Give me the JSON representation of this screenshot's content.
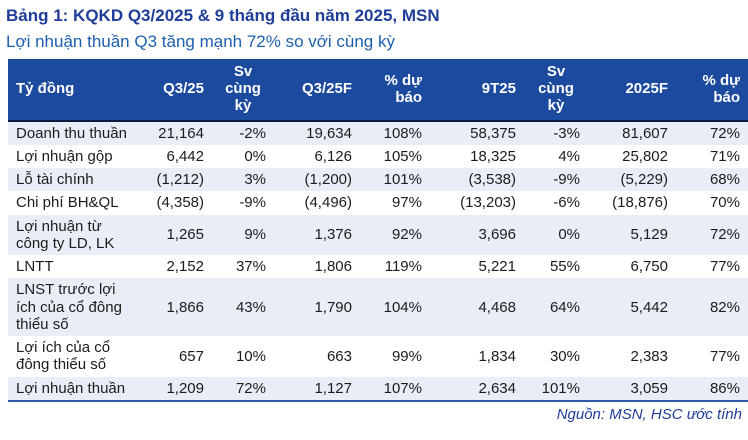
{
  "title": "Bảng 1: KQKD Q3/2025 & 9 tháng đầu năm 2025, MSN",
  "subtitle": "Lợi nhuận thuần Q3 tăng mạnh 72% so với cùng kỳ",
  "colors": {
    "header_bg": "#1B4A9E",
    "row_alt_bg": "#E9EDF6",
    "title": "#1F3D99",
    "subtitle": "#1C5FAE",
    "header_underline": "#0D1B3E",
    "table_bottom_border": "#2E5CA8"
  },
  "table": {
    "headers": [
      "Tỷ đồng",
      "Q3/25",
      "Sv cùng kỳ",
      "Q3/25F",
      "% dự báo",
      "9T25",
      "Sv cùng kỳ",
      "2025F",
      "% dự báo"
    ],
    "rows": [
      {
        "label": "Doanh thu thuần",
        "cells": [
          "21,164",
          "-2%",
          "19,634",
          "108%",
          "58,375",
          "-3%",
          "81,607",
          "72%"
        ]
      },
      {
        "label": "Lợi nhuận gộp",
        "cells": [
          "6,442",
          "0%",
          "6,126",
          "105%",
          "18,325",
          "4%",
          "25,802",
          "71%"
        ]
      },
      {
        "label": "Lỗ tài chính",
        "cells": [
          "(1,212)",
          "3%",
          "(1,200)",
          "101%",
          "(3,538)",
          "-9%",
          "(5,229)",
          "68%"
        ]
      },
      {
        "label": "Chi phí BH&QL",
        "cells": [
          "(4,358)",
          "-9%",
          "(4,496)",
          "97%",
          "(13,203)",
          "-6%",
          "(18,876)",
          "70%"
        ]
      },
      {
        "label": "Lợi nhuận từ công ty LD, LK",
        "cells": [
          "1,265",
          "9%",
          "1,376",
          "92%",
          "3,696",
          "0%",
          "5,129",
          "72%"
        ]
      },
      {
        "label": "LNTT",
        "cells": [
          "2,152",
          "37%",
          "1,806",
          "119%",
          "5,221",
          "55%",
          "6,750",
          "77%"
        ]
      },
      {
        "label": "LNST trước lợi ích của cổ đông thiểu số",
        "cells": [
          "1,866",
          "43%",
          "1,790",
          "104%",
          "4,468",
          "64%",
          "5,442",
          "82%"
        ]
      },
      {
        "label": "Lợi ích của cổ đông thiểu số",
        "cells": [
          "657",
          "10%",
          "663",
          "99%",
          "1,834",
          "30%",
          "2,383",
          "77%"
        ]
      },
      {
        "label": "Lợi nhuận thuần",
        "cells": [
          "1,209",
          "72%",
          "1,127",
          "107%",
          "2,634",
          "101%",
          "3,059",
          "86%"
        ]
      }
    ]
  },
  "footer": {
    "source": "Nguồn: MSN, HSC ước tính"
  }
}
